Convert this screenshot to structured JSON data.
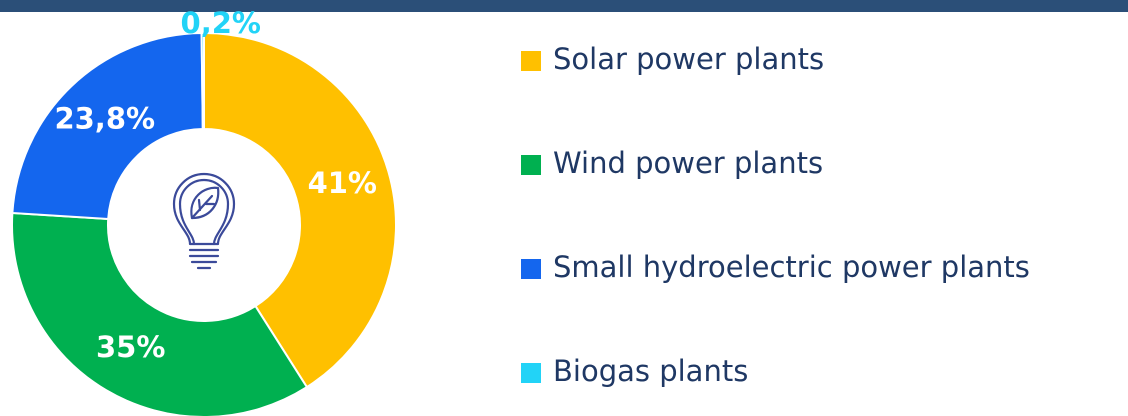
{
  "chart_data": {
    "type": "pie",
    "categories": [
      "Solar power plants",
      "Wind power plants",
      "Small hydroelectric power plants",
      "Biogas plants"
    ],
    "values": [
      41,
      35,
      23.8,
      0.2
    ],
    "value_labels": [
      "41%",
      "35%",
      "23,8%",
      "0,2%"
    ],
    "colors": [
      "#ffc000",
      "#00b050",
      "#1466ee",
      "#22d3f7"
    ],
    "donut": true
  }
}
